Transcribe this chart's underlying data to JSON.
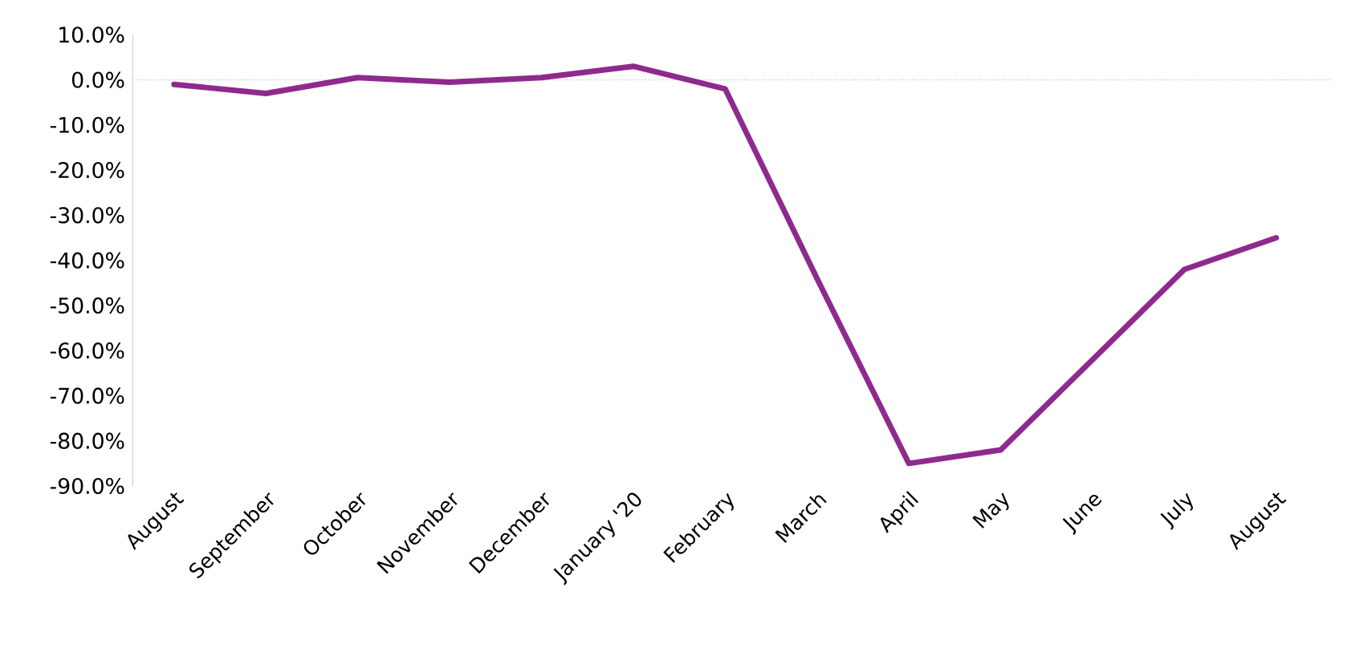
{
  "chart_data": {
    "type": "line",
    "categories": [
      "August",
      "September",
      "October",
      "November",
      "December",
      "January '20",
      "February",
      "March",
      "April",
      "May",
      "June",
      "July",
      "August"
    ],
    "series": [
      {
        "color": "#8e2a8e",
        "values": [
          -1,
          -3,
          0.5,
          -0.5,
          0.5,
          3,
          -2,
          -44,
          -85,
          -82,
          -62,
          -42,
          -35
        ]
      }
    ],
    "ylim": [
      -90,
      10
    ],
    "yticks": [
      {
        "value": 10,
        "label": "10.0%"
      },
      {
        "value": 0,
        "label": "0.0%"
      },
      {
        "value": -10,
        "label": "-10.0%"
      },
      {
        "value": -20,
        "label": "-20.0%"
      },
      {
        "value": -30,
        "label": "-30.0%"
      },
      {
        "value": -40,
        "label": "-40.0%"
      },
      {
        "value": -50,
        "label": "-50.0%"
      },
      {
        "value": -60,
        "label": "-60.0%"
      },
      {
        "value": -70,
        "label": "-70.0%"
      },
      {
        "value": -80,
        "label": "-80.0%"
      },
      {
        "value": -90,
        "label": "-90.0%"
      }
    ],
    "marker": "none",
    "line_style": "solid"
  }
}
